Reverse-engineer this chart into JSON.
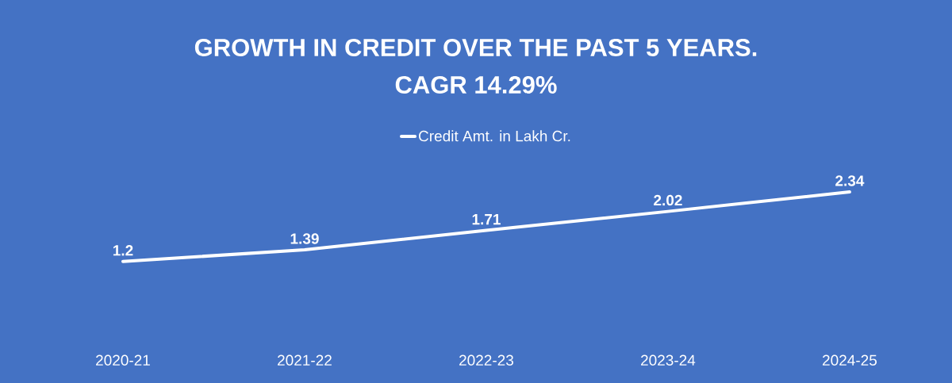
{
  "chart_data": {
    "type": "line",
    "title": "GROWTH IN CREDIT OVER THE PAST 5 YEARS.",
    "subtitle": "CAGR 14.29%",
    "categories": [
      "2020-21",
      "2021-22",
      "2022-23",
      "2023-24",
      "2024-25"
    ],
    "series": [
      {
        "name": "Credit Amt. in Lakh Cr.",
        "color": "#ffffff",
        "values": [
          1.2,
          1.39,
          1.71,
          2.02,
          2.34
        ]
      }
    ],
    "data_labels": true,
    "legend": "top",
    "marker": "none",
    "line_style": "solid"
  }
}
